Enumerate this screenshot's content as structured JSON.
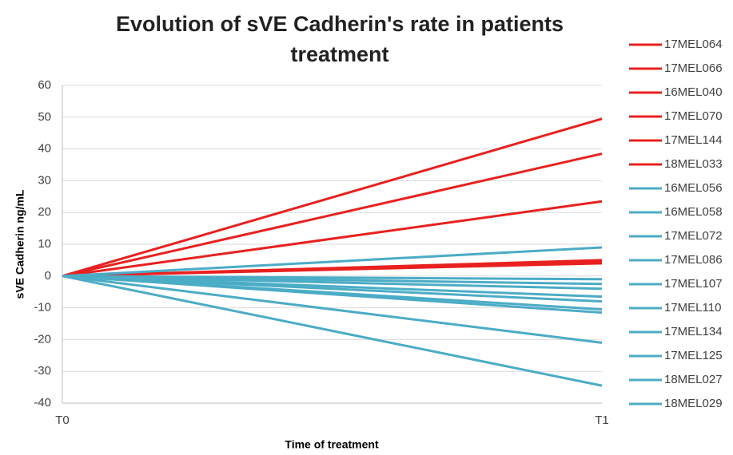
{
  "chart_data": {
    "type": "line",
    "title": [
      "Evolution of sVE Cadherin's rate in patients",
      "treatment"
    ],
    "y_label": "sVE Cadherin ng/mL",
    "x_label": "Time of treatment",
    "categories": [
      "T0",
      "T1"
    ],
    "ylim": [
      -40,
      60
    ],
    "yticks": [
      -40,
      -30,
      -20,
      -10,
      0,
      10,
      20,
      30,
      40,
      50,
      60
    ],
    "grid": true,
    "legend": "right",
    "series": [
      {
        "name": "17MEL064",
        "color": "#e8211f",
        "values": [
          0,
          49.5
        ]
      },
      {
        "name": "17MEL066",
        "color": "#e8211f",
        "values": [
          0,
          38.5
        ]
      },
      {
        "name": "16MEL040",
        "color": "#e8211f",
        "values": [
          0,
          23.5
        ]
      },
      {
        "name": "17MEL070",
        "color": "#e8211f",
        "values": [
          0,
          5
        ]
      },
      {
        "name": "17MEL144",
        "color": "#e8211f",
        "values": [
          0,
          4.5
        ]
      },
      {
        "name": "18MEL033",
        "color": "#e8211f",
        "values": [
          0,
          4
        ]
      },
      {
        "name": "16MEL056",
        "color": "#4bacc6",
        "values": [
          0,
          9
        ]
      },
      {
        "name": "16MEL058",
        "color": "#4bacc6",
        "values": [
          0,
          -1
        ]
      },
      {
        "name": "17MEL072",
        "color": "#4bacc6",
        "values": [
          0,
          -2.5
        ]
      },
      {
        "name": "17MEL086",
        "color": "#4bacc6",
        "values": [
          0,
          -4
        ]
      },
      {
        "name": "17MEL107",
        "color": "#4bacc6",
        "values": [
          0,
          -6.5
        ]
      },
      {
        "name": "17MEL110",
        "color": "#4bacc6",
        "values": [
          0,
          -8
        ]
      },
      {
        "name": "17MEL134",
        "color": "#4bacc6",
        "values": [
          0,
          -10.5
        ]
      },
      {
        "name": "17MEL125",
        "color": "#4bacc6",
        "values": [
          0,
          -11.5
        ]
      },
      {
        "name": "18MEL027",
        "color": "#4bacc6",
        "values": [
          0,
          -21
        ]
      },
      {
        "name": "18MEL029",
        "color": "#4bacc6",
        "values": [
          0,
          -34.5
        ]
      }
    ]
  }
}
